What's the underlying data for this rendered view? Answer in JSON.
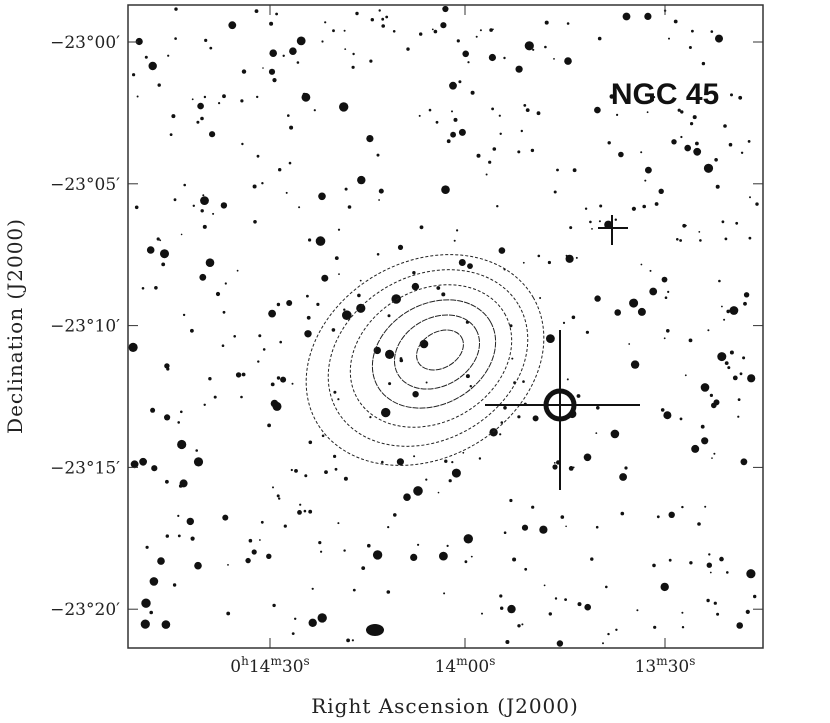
{
  "figure": {
    "label": "NGC 45",
    "x_axis": {
      "title": "Right Ascension (J2000)",
      "ticks": [
        "0h14m30s",
        "14m00s",
        "13m30s"
      ]
    },
    "y_axis": {
      "title": "Declination (J2000)",
      "ticks": [
        "−23°00′",
        "−23°05′",
        "−23°10′",
        "−23°15′",
        "−23°20′"
      ]
    }
  }
}
